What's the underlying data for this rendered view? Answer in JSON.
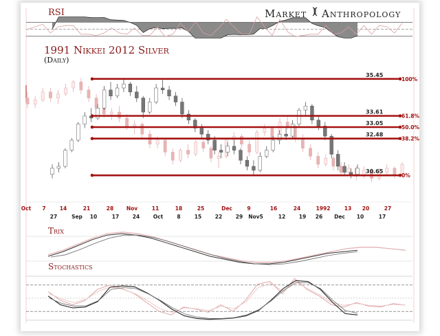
{
  "brand": {
    "left": "Market",
    "right": "Anthropology"
  },
  "chart_data": {
    "type": "candlestick",
    "title": "1991 Nikkei 2012 Silver",
    "subtitle": "(Daily)",
    "panels": {
      "rsi": "RSI",
      "trix": "Trix",
      "stochastics": "Stochastics"
    },
    "ylim": [
      29.8,
      36.3
    ],
    "fib_levels": [
      {
        "value": 35.45,
        "label": "35.45",
        "pct": "100%"
      },
      {
        "value": 33.61,
        "label": "33.61",
        "pct": "61.8%"
      },
      {
        "value": 33.05,
        "label": "33.05",
        "pct": "50.0%"
      },
      {
        "value": 32.48,
        "label": "32.48",
        "pct": "38.2%"
      },
      {
        "value": 30.65,
        "label": "30.65",
        "pct": "0%"
      }
    ],
    "x_ticks_top": [
      "Oct",
      "7",
      "14",
      "21",
      "28",
      "Nov",
      "11",
      "18",
      "25",
      "Dec",
      "9",
      "16",
      "24",
      "1992",
      "13",
      "20",
      "27"
    ],
    "x_ticks_bottom": [
      "27",
      "Sep",
      "10",
      "17",
      "24",
      "Oct",
      "8",
      "15",
      "22",
      "29",
      "Nov5",
      "12",
      "19",
      "26",
      "Dec",
      "10",
      "17"
    ],
    "series": [
      {
        "name": "2012",
        "ohlc": [
          [
            30.7,
            31.2,
            30.5,
            31.0
          ],
          [
            31.0,
            31.3,
            30.8,
            31.1
          ],
          [
            31.1,
            32.0,
            31.0,
            31.9
          ],
          [
            31.9,
            32.5,
            31.8,
            32.4
          ],
          [
            32.4,
            33.3,
            32.3,
            33.2
          ],
          [
            33.2,
            33.8,
            33.0,
            33.6
          ],
          [
            33.6,
            34.0,
            33.3,
            33.5
          ],
          [
            33.5,
            34.2,
            33.4,
            34.0
          ],
          [
            34.0,
            35.1,
            33.9,
            34.9
          ],
          [
            34.9,
            35.3,
            34.4,
            34.6
          ],
          [
            34.6,
            35.2,
            34.5,
            35.0
          ],
          [
            35.0,
            35.5,
            34.8,
            35.2
          ],
          [
            35.2,
            35.3,
            34.6,
            34.8
          ],
          [
            34.8,
            35.1,
            34.3,
            34.5
          ],
          [
            34.5,
            34.6,
            33.5,
            33.8
          ],
          [
            33.8,
            34.5,
            33.7,
            34.3
          ],
          [
            34.3,
            35.2,
            34.2,
            35.0
          ],
          [
            35.0,
            35.4,
            34.7,
            34.9
          ],
          [
            34.9,
            35.1,
            34.4,
            34.6
          ],
          [
            34.6,
            34.8,
            34.1,
            34.3
          ],
          [
            34.3,
            34.5,
            33.5,
            33.7
          ],
          [
            33.7,
            33.9,
            33.2,
            33.4
          ],
          [
            33.4,
            33.5,
            32.8,
            33.0
          ],
          [
            33.0,
            33.2,
            32.5,
            32.7
          ],
          [
            32.7,
            32.9,
            32.2,
            32.4
          ],
          [
            32.4,
            32.6,
            31.7,
            31.9
          ],
          [
            31.9,
            32.2,
            31.5,
            31.8
          ],
          [
            31.8,
            32.3,
            31.6,
            32.1
          ],
          [
            32.1,
            32.4,
            31.7,
            31.9
          ],
          [
            31.9,
            32.0,
            31.2,
            31.4
          ],
          [
            31.4,
            31.6,
            30.9,
            31.1
          ],
          [
            31.1,
            31.4,
            30.6,
            30.9
          ],
          [
            30.9,
            31.8,
            30.8,
            31.6
          ],
          [
            31.6,
            32.1,
            31.5,
            31.9
          ],
          [
            31.9,
            32.6,
            31.8,
            32.4
          ],
          [
            32.4,
            32.9,
            32.2,
            32.7
          ],
          [
            32.7,
            33.0,
            32.4,
            32.6
          ],
          [
            32.6,
            33.4,
            32.5,
            33.2
          ],
          [
            33.2,
            34.0,
            33.1,
            33.9
          ],
          [
            33.9,
            34.3,
            33.6,
            34.1
          ],
          [
            34.1,
            34.2,
            33.2,
            33.4
          ],
          [
            33.4,
            33.6,
            32.9,
            33.1
          ],
          [
            33.1,
            33.3,
            32.4,
            32.6
          ],
          [
            32.6,
            32.7,
            31.5,
            31.7
          ],
          [
            31.7,
            31.9,
            30.9,
            31.1
          ],
          [
            31.1,
            31.3,
            30.6,
            30.8
          ],
          [
            30.8,
            31.0,
            30.5,
            30.7
          ],
          [
            30.7,
            31.2,
            30.6,
            31.0
          ]
        ]
      },
      {
        "name": "1991",
        "ohlc": [
          [
            34.5,
            34.8,
            34.0,
            34.2
          ],
          [
            34.2,
            34.6,
            34.0,
            34.4
          ],
          [
            34.4,
            35.0,
            34.3,
            34.8
          ],
          [
            34.8,
            35.0,
            34.3,
            34.5
          ],
          [
            34.5,
            34.9,
            34.2,
            34.7
          ],
          [
            34.7,
            35.2,
            34.6,
            35.0
          ],
          [
            35.0,
            35.4,
            34.8,
            35.3
          ],
          [
            35.3,
            35.5,
            34.7,
            34.9
          ],
          [
            34.9,
            35.1,
            34.3,
            34.5
          ],
          [
            34.5,
            34.7,
            33.8,
            34.0
          ],
          [
            34.0,
            34.2,
            33.5,
            33.7
          ],
          [
            33.7,
            34.0,
            33.4,
            33.8
          ],
          [
            33.8,
            34.1,
            33.3,
            33.5
          ],
          [
            33.5,
            33.7,
            32.9,
            33.1
          ],
          [
            33.1,
            33.4,
            32.7,
            33.2
          ],
          [
            33.2,
            33.3,
            32.5,
            32.7
          ],
          [
            32.7,
            32.9,
            32.0,
            32.2
          ],
          [
            32.2,
            32.6,
            32.0,
            32.4
          ],
          [
            32.4,
            32.5,
            31.6,
            31.8
          ],
          [
            31.8,
            32.0,
            31.2,
            31.4
          ],
          [
            31.4,
            32.0,
            31.3,
            31.9
          ],
          [
            31.9,
            32.2,
            31.5,
            31.7
          ],
          [
            31.7,
            32.4,
            31.6,
            32.3
          ],
          [
            32.3,
            32.5,
            31.8,
            32.0
          ],
          [
            32.0,
            32.1,
            31.3,
            31.5
          ],
          [
            31.5,
            31.8,
            31.0,
            31.6
          ],
          [
            31.6,
            32.5,
            31.5,
            32.4
          ],
          [
            32.4,
            32.8,
            32.2,
            32.6
          ],
          [
            32.6,
            32.7,
            32.0,
            32.2
          ],
          [
            32.2,
            32.4,
            31.6,
            31.8
          ],
          [
            31.8,
            32.9,
            31.7,
            32.8
          ],
          [
            32.8,
            33.2,
            32.6,
            33.0
          ],
          [
            33.0,
            33.1,
            32.3,
            32.5
          ],
          [
            32.5,
            33.5,
            32.4,
            33.3
          ],
          [
            33.3,
            33.6,
            32.9,
            33.1
          ],
          [
            33.1,
            33.2,
            32.3,
            32.5
          ],
          [
            32.5,
            32.7,
            31.8,
            32.0
          ],
          [
            32.0,
            32.2,
            31.4,
            31.6
          ],
          [
            31.6,
            31.8,
            31.0,
            31.2
          ],
          [
            31.2,
            31.7,
            31.1,
            31.5
          ],
          [
            31.5,
            31.6,
            30.9,
            31.1
          ],
          [
            31.1,
            31.3,
            30.6,
            30.8
          ],
          [
            30.8,
            31.2,
            30.7,
            31.0
          ],
          [
            31.0,
            31.1,
            30.4,
            30.6
          ],
          [
            30.6,
            31.1,
            30.5,
            30.9
          ],
          [
            30.9,
            31.0,
            30.3,
            30.5
          ],
          [
            30.5,
            31.0,
            30.4,
            30.8
          ],
          [
            30.8,
            31.2,
            30.6,
            31.0
          ],
          [
            31.0,
            31.1,
            30.5,
            30.7
          ],
          [
            30.7,
            31.3,
            30.6,
            31.2
          ]
        ]
      }
    ],
    "rsi": {
      "ref_levels": [
        70,
        50,
        30
      ]
    },
    "trix": {
      "series_2012": [
        -0.5,
        -0.2,
        0.2,
        0.6,
        0.9,
        1.0,
        0.9,
        0.7,
        0.4,
        0.1,
        -0.2,
        -0.5,
        -0.7,
        -0.9,
        -1.0,
        -1.0,
        -0.9,
        -0.7,
        -0.5,
        -0.3,
        -0.2,
        -0.1
      ],
      "series_1991": [
        -0.4,
        -0.1,
        0.3,
        0.7,
        1.0,
        1.1,
        1.0,
        0.8,
        0.5,
        0.2,
        -0.1,
        -0.4,
        -0.6,
        -0.8,
        -0.9,
        -0.9,
        -0.8,
        -0.6,
        -0.4,
        -0.2,
        0.0,
        0.1,
        0.1,
        0.0,
        -0.1
      ]
    },
    "stochastics": {
      "ref_levels": [
        80,
        50,
        20
      ],
      "series_2012_k": [
        55,
        35,
        28,
        30,
        42,
        75,
        78,
        76,
        62,
        45,
        25,
        10,
        4,
        2,
        3,
        5,
        10,
        22,
        45,
        72,
        90,
        88,
        70,
        40,
        15,
        12
      ],
      "series_2012_d": [
        50,
        38,
        32,
        33,
        45,
        70,
        74,
        72,
        60,
        45,
        28,
        14,
        7,
        4,
        4,
        6,
        12,
        24,
        44,
        68,
        85,
        85,
        72,
        45,
        22,
        16
      ],
      "series_1991_k": [
        65,
        45,
        35,
        45,
        70,
        80,
        72,
        60,
        40,
        20,
        12,
        30,
        25,
        18,
        35,
        20,
        45,
        82,
        88,
        60,
        95,
        70,
        55,
        35,
        30,
        40,
        32,
        30,
        38,
        34
      ],
      "series_1991_d": [
        60,
        48,
        40,
        48,
        66,
        76,
        70,
        60,
        44,
        26,
        18,
        28,
        26,
        22,
        32,
        26,
        42,
        74,
        84,
        66,
        88,
        72,
        58,
        40,
        34,
        38,
        34,
        32,
        36,
        34
      ]
    }
  }
}
